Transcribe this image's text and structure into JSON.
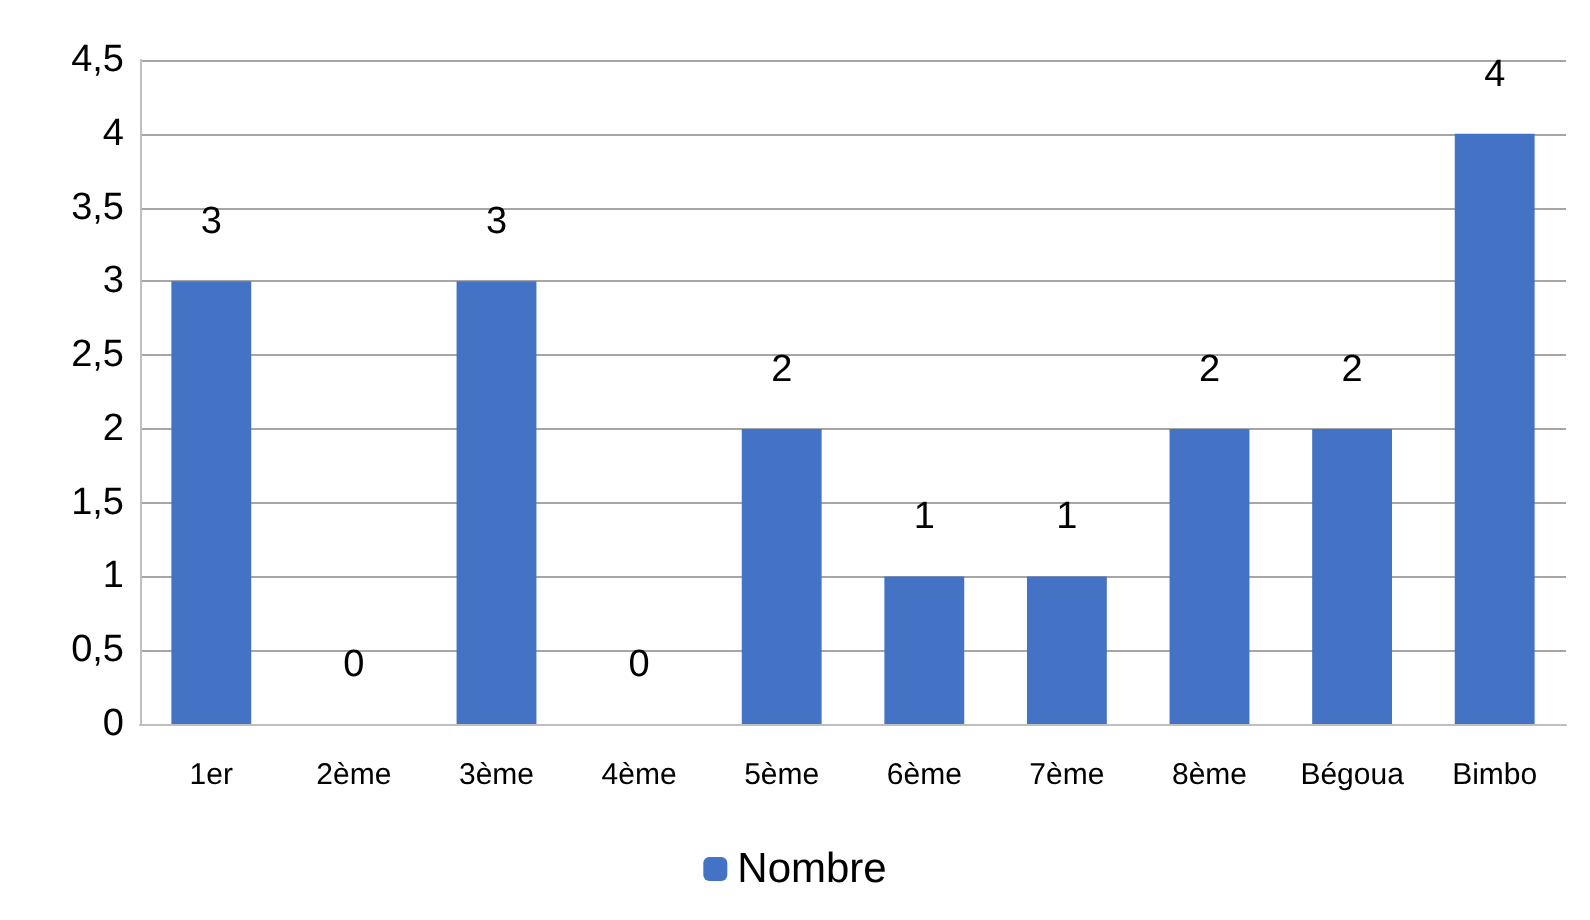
{
  "chart_data": {
    "type": "bar",
    "categories": [
      "1er",
      "2ème",
      "3ème",
      "4ème",
      "5ème",
      "6ème",
      "7ème",
      "8ème",
      "Bégoua",
      "Bimbo"
    ],
    "series": [
      {
        "name": "Nombre",
        "color": "#4472c4",
        "values": [
          3,
          0,
          3,
          0,
          2,
          1,
          1,
          2,
          2,
          4
        ]
      }
    ],
    "ylim": [
      0,
      4.5
    ],
    "yticks": [
      0,
      {
        "value": 0.5,
        "label": "0,5"
      },
      1,
      {
        "value": 1.5,
        "label": "1,5"
      },
      2,
      {
        "value": 2.5,
        "label": "2,5"
      },
      3,
      {
        "value": 3.5,
        "label": "3,5"
      },
      4,
      {
        "value": 4.5,
        "label": "4,5"
      }
    ],
    "grid": "y",
    "legend": "bottom",
    "data_labels": true
  }
}
